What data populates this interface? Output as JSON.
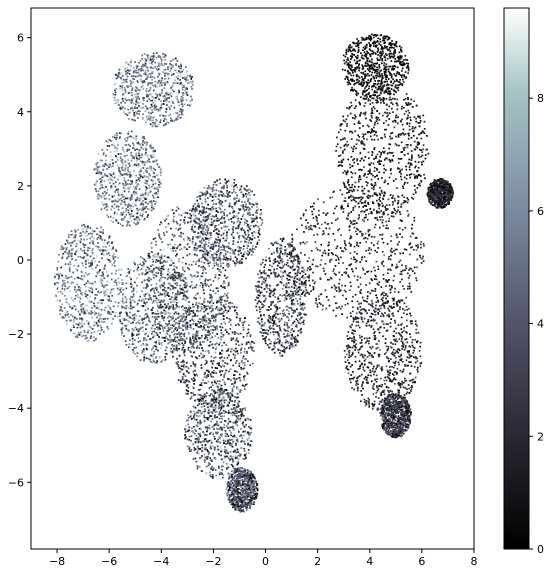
{
  "chart_data": {
    "type": "scatter",
    "title": "",
    "xlabel": "",
    "ylabel": "",
    "xlim": [
      -9.0,
      8.0
    ],
    "ylim": [
      -7.8,
      6.8
    ],
    "xticks": [
      -8,
      -6,
      -4,
      -2,
      0,
      2,
      4,
      6,
      8
    ],
    "yticks": [
      -6,
      -4,
      -2,
      0,
      2,
      4,
      6
    ],
    "grid": false,
    "colormap": "bone",
    "colorbar": {
      "range": [
        0,
        9.6
      ],
      "ticks": [
        0,
        2,
        4,
        6,
        8
      ],
      "stops": [
        "#000000",
        "#4a4a5e",
        "#7b8aa0",
        "#a8c6c6",
        "#ffffff"
      ]
    },
    "marker_color_scale": {
      "right_lobe_dark": "#0a0a12",
      "left_lobe_light": "#aebfc4"
    },
    "point_count_shown": "dense",
    "regions": [
      {
        "cx": 4.2,
        "cy": 5.2,
        "rx": 1.3,
        "ry": 0.9,
        "value_mean": 0.6,
        "value_sd": 0.6
      },
      {
        "cx": 4.5,
        "cy": 3.0,
        "rx": 1.8,
        "ry": 1.8,
        "value_mean": 1.2,
        "value_sd": 0.9
      },
      {
        "cx": 3.5,
        "cy": 0.2,
        "rx": 2.6,
        "ry": 1.8,
        "value_mean": 1.8,
        "value_sd": 1.3
      },
      {
        "cx": 4.5,
        "cy": -2.5,
        "rx": 1.5,
        "ry": 1.6,
        "value_mean": 1.8,
        "value_sd": 1.2
      },
      {
        "cx": 5.0,
        "cy": -4.2,
        "rx": 0.6,
        "ry": 0.6,
        "value_mean": 2.5,
        "value_sd": 1.5
      },
      {
        "cx": 6.7,
        "cy": 1.8,
        "rx": 0.5,
        "ry": 0.4,
        "value_mean": 1.5,
        "value_sd": 1.2
      },
      {
        "cx": -4.3,
        "cy": 4.6,
        "rx": 1.6,
        "ry": 1.0,
        "value_mean": 5.5,
        "value_sd": 2.0
      },
      {
        "cx": -5.3,
        "cy": 2.2,
        "rx": 1.3,
        "ry": 1.3,
        "value_mean": 5.5,
        "value_sd": 2.0
      },
      {
        "cx": -6.8,
        "cy": -0.6,
        "rx": 1.3,
        "ry": 1.6,
        "value_mean": 5.5,
        "value_sd": 2.2
      },
      {
        "cx": -4.3,
        "cy": -1.3,
        "rx": 1.4,
        "ry": 1.5,
        "value_mean": 4.8,
        "value_sd": 2.2
      },
      {
        "cx": -1.5,
        "cy": 1.0,
        "rx": 1.4,
        "ry": 1.2,
        "value_mean": 3.8,
        "value_sd": 2.2
      },
      {
        "cx": -2.0,
        "cy": -2.5,
        "rx": 1.6,
        "ry": 1.5,
        "value_mean": 3.2,
        "value_sd": 2.2
      },
      {
        "cx": -1.8,
        "cy": -4.7,
        "rx": 1.3,
        "ry": 1.2,
        "value_mean": 4.0,
        "value_sd": 2.3
      },
      {
        "cx": -0.9,
        "cy": -6.2,
        "rx": 0.6,
        "ry": 0.6,
        "value_mean": 3.5,
        "value_sd": 2.2
      },
      {
        "cx": 0.6,
        "cy": -1.0,
        "rx": 1.0,
        "ry": 1.6,
        "value_mean": 3.0,
        "value_sd": 2.2
      },
      {
        "cx": -3.0,
        "cy": -0.5,
        "rx": 1.6,
        "ry": 2.0,
        "value_mean": 4.2,
        "value_sd": 2.2
      }
    ]
  }
}
